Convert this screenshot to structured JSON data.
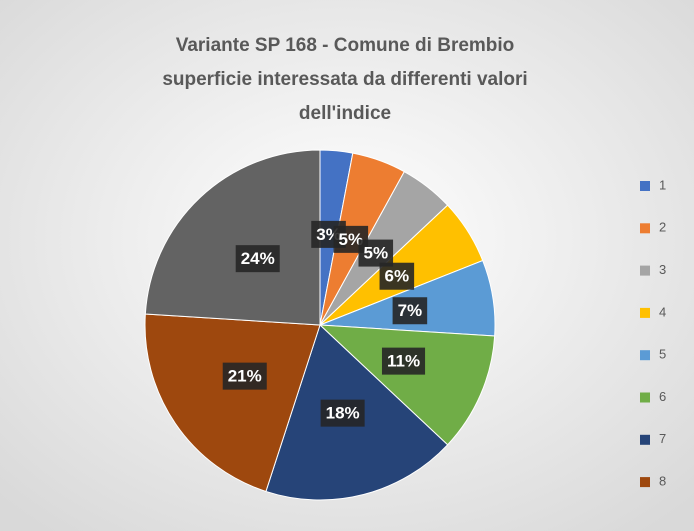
{
  "chart_data": {
    "type": "pie",
    "title": [
      "Variante SP 168 - Comune di Brembio",
      "superficie interessata  da differenti valori",
      "dell'indice"
    ],
    "categories": [
      "1",
      "2",
      "3",
      "4",
      "5",
      "6",
      "7",
      "8",
      null
    ],
    "values": [
      3,
      5,
      5,
      6,
      7,
      11,
      18,
      21,
      24
    ],
    "value_labels": [
      "3%",
      "5%",
      "5%",
      "6%",
      "7%",
      "11%",
      "18%",
      "21%",
      "24%"
    ],
    "colors": [
      "#4472c4",
      "#ed7d31",
      "#a5a5a5",
      "#ffc000",
      "#5b9bd5",
      "#70ad47",
      "#264478",
      "#9e480e",
      "#636363"
    ],
    "legend": "right"
  }
}
